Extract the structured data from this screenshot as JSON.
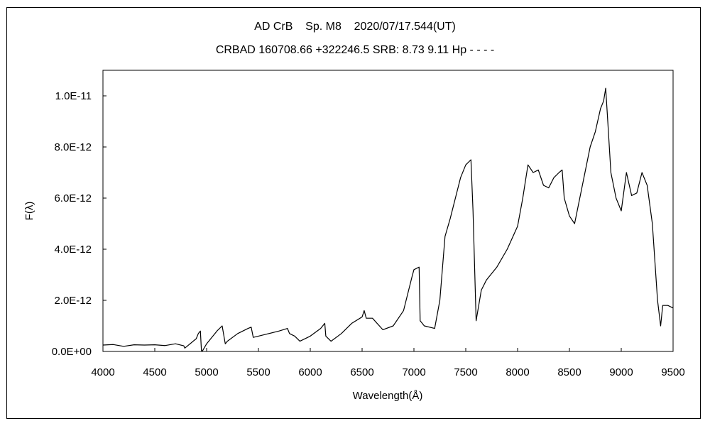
{
  "chart_data": {
    "type": "line",
    "title": "AD CrB    Sp. M8    2020/07/17.544(UT)",
    "subtitle": "CRBAD 160708.66 +322246.5 SRB: 8.73 9.11 Hp - - - -",
    "xlabel": "Wavelength(Å)",
    "ylabel": "F(λ)",
    "xlim": [
      4000,
      9500
    ],
    "ylim": [
      0,
      1.1e-11
    ],
    "xticks": [
      4000,
      4500,
      5000,
      5500,
      6000,
      6500,
      7000,
      7500,
      8000,
      8500,
      9000,
      9500
    ],
    "xtick_labels": [
      "4000",
      "4500",
      "5000",
      "5500",
      "6000",
      "6500",
      "7000",
      "7500",
      "8000",
      "8500",
      "9000",
      "9500"
    ],
    "yticks": [
      0,
      2e-12,
      4e-12,
      6e-12,
      8e-12,
      1e-11
    ],
    "ytick_labels": [
      "0.0E+00",
      "2.0E-12",
      "4.0E-12",
      "6.0E-12",
      "8.0E-12",
      "1.0E-11"
    ],
    "grid": false,
    "line_color": "#000000",
    "series": [
      {
        "x": [
          4000,
          4100,
          4200,
          4300,
          4400,
          4500,
          4600,
          4700,
          4780,
          4790,
          4900,
          4920,
          4940,
          4950,
          4960,
          5000,
          5100,
          5150,
          5180,
          5200,
          5300,
          5400,
          5430,
          5450,
          5500,
          5600,
          5700,
          5780,
          5800,
          5850,
          5900,
          6000,
          6100,
          6140,
          6150,
          6200,
          6300,
          6400,
          6500,
          6520,
          6540,
          6600,
          6700,
          6800,
          6900,
          6980,
          7000,
          7050,
          7060,
          7100,
          7200,
          7250,
          7300,
          7350,
          7400,
          7450,
          7500,
          7550,
          7570,
          7600,
          7650,
          7700,
          7800,
          7900,
          8000,
          8050,
          8100,
          8150,
          8200,
          8250,
          8300,
          8350,
          8400,
          8430,
          8450,
          8500,
          8550,
          8600,
          8650,
          8700,
          8750,
          8800,
          8830,
          8850,
          8870,
          8900,
          8950,
          9000,
          9050,
          9100,
          9150,
          9200,
          9250,
          9300,
          9350,
          9380,
          9400,
          9450,
          9500
        ],
        "y": [
          2.5e-13,
          2.7e-13,
          2e-13,
          2.6e-13,
          2.5e-13,
          2.6e-13,
          2.3e-13,
          3e-13,
          2.2e-13,
          1.3e-13,
          5e-13,
          7e-13,
          8e-13,
          3e-14,
          2e-14,
          3e-13,
          8e-13,
          1e-12,
          3e-13,
          4e-13,
          7e-13,
          9e-13,
          9.5e-13,
          5.5e-13,
          6e-13,
          7e-13,
          8e-13,
          9e-13,
          7e-13,
          6e-13,
          4e-13,
          6e-13,
          9e-13,
          1.1e-12,
          6e-13,
          4e-13,
          7e-13,
          1.1e-12,
          1.35e-12,
          1.6e-12,
          1.3e-12,
          1.3e-12,
          8.5e-13,
          1e-12,
          1.6e-12,
          2.9e-12,
          3.2e-12,
          3.3e-12,
          1.2e-12,
          1e-12,
          9e-13,
          2e-12,
          4.5e-12,
          5.2e-12,
          6e-12,
          6.8e-12,
          7.3e-12,
          7.5e-12,
          5.5e-12,
          1.2e-12,
          2.4e-12,
          2.8e-12,
          3.3e-12,
          4e-12,
          4.9e-12,
          6e-12,
          7.3e-12,
          7e-12,
          7.1e-12,
          6.5e-12,
          6.4e-12,
          6.8e-12,
          7e-12,
          7.1e-12,
          6e-12,
          5.3e-12,
          5e-12,
          6e-12,
          7e-12,
          8e-12,
          8.6e-12,
          9.5e-12,
          9.8e-12,
          1.03e-11,
          9e-12,
          7e-12,
          6e-12,
          5.5e-12,
          7e-12,
          6.1e-12,
          6.2e-12,
          7e-12,
          6.5e-12,
          5e-12,
          2e-12,
          1e-12,
          1.8e-12,
          1.8e-12,
          1.7e-12
        ]
      }
    ]
  }
}
